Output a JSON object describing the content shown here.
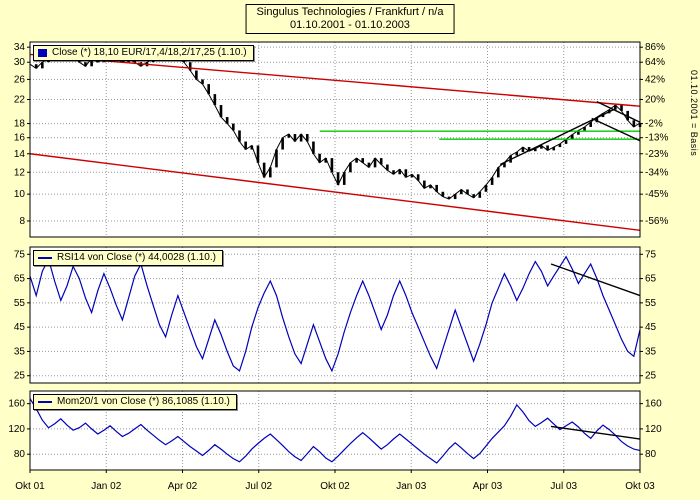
{
  "window": {
    "title_line1": "Singulus Technologies / Frankfurt / n/a",
    "title_line2": "01.10.2001 - 01.10.2003"
  },
  "right_axis_note": "01.10.2001 = Basis",
  "legends": {
    "price": "Close (*) 18,10 EUR/17,4/18,2/17,25 (1.10.)",
    "rsi": "RSI14 von Close (*) 44,0028 (1.10.)",
    "mom": "Mom20/1 von Close (*) 86,1085 (1.10.)"
  },
  "colors": {
    "background": "#ffffc8",
    "panel": "#ffffff",
    "grid": "#999999",
    "frame": "#000000",
    "price": "#000000",
    "indicator": "#0000bb",
    "red": "#cc0000",
    "green": "#00cc00",
    "black": "#000000"
  },
  "x_axis": {
    "labels": [
      "Okt 01",
      "Jan 02",
      "Apr 02",
      "Jul 02",
      "Okt 02",
      "Jan 03",
      "Apr 03",
      "Jul 03",
      "Okt 03"
    ],
    "month_offsets": [
      0,
      3,
      6,
      9,
      12,
      15,
      18,
      21,
      24
    ],
    "grid_months": [
      3,
      6,
      9,
      12,
      15,
      18,
      21
    ],
    "total_months": 24
  },
  "chart_data": [
    {
      "type": "candlestick",
      "name": "Close",
      "unit": "EUR",
      "scale": "log",
      "range": [
        7.0,
        35.5
      ],
      "yticks": [
        {
          "value": 34,
          "pct": "86%"
        },
        {
          "value": 30,
          "pct": "64%"
        },
        {
          "value": 26,
          "pct": "42%"
        },
        {
          "value": 22,
          "pct": "20%"
        },
        {
          "value": 18,
          "pct": "-2%"
        },
        {
          "value": 16,
          "pct": "-13%"
        },
        {
          "value": 14,
          "pct": "-23%"
        },
        {
          "value": 12,
          "pct": "-34%"
        },
        {
          "value": 10,
          "pct": "-45%"
        },
        {
          "value": 8,
          "pct": "-56%"
        }
      ],
      "close": [
        29.5,
        28.5,
        30,
        31,
        32,
        31,
        33,
        32,
        30,
        29,
        31,
        30,
        31,
        32,
        31,
        30,
        31,
        30,
        29,
        30,
        31,
        32,
        31.5,
        32.5,
        31,
        30,
        28,
        26,
        25,
        23,
        21,
        19,
        18,
        17,
        15.5,
        14.5,
        15,
        13,
        11.5,
        12.5,
        14.5,
        16,
        16.5,
        15.5,
        16.5,
        15.5,
        14,
        13,
        13.5,
        12,
        10.8,
        12,
        13,
        13.5,
        13,
        12.5,
        13.5,
        12.8,
        12.2,
        11.8,
        12.3,
        11.5,
        11.8,
        11.2,
        10.5,
        10.8,
        10.2,
        9.8,
        9.6,
        10,
        10.4,
        10,
        9.7,
        10.2,
        10.8,
        11.5,
        12.5,
        13,
        13.8,
        14.2,
        14.8,
        14.3,
        14.6,
        15,
        14.4,
        14.8,
        15.2,
        15.8,
        16.4,
        17,
        17.5,
        18.2,
        19,
        19.6,
        20.2,
        21,
        20,
        18.5,
        17.5,
        18.1
      ],
      "lines": [
        {
          "color": "red",
          "m1": 0,
          "v1": 32,
          "m2": 24,
          "v2": 20.8
        },
        {
          "color": "red",
          "m1": 0,
          "v1": 14,
          "m2": 24,
          "v2": 7.4
        },
        {
          "color": "green",
          "m1": 11.4,
          "v1": 16.9,
          "m2": 24,
          "v2": 16.9
        },
        {
          "color": "green",
          "m1": 16.1,
          "v1": 15.8,
          "m2": 24,
          "v2": 15.8
        },
        {
          "color": "black",
          "m1": 18.5,
          "v1": 12.8,
          "m2": 23,
          "v2": 20.3
        },
        {
          "color": "black",
          "m1": 22.3,
          "v1": 21.6,
          "m2": 24,
          "v2": 18.2
        },
        {
          "color": "black",
          "m1": 22.1,
          "v1": 18.8,
          "m2": 24,
          "v2": 15.6
        }
      ]
    },
    {
      "type": "line",
      "name": "RSI14",
      "range": [
        22,
        78
      ],
      "yticks": [
        75,
        65,
        55,
        45,
        35,
        25
      ],
      "values": [
        66,
        58,
        68,
        73,
        64,
        56,
        62,
        70,
        65,
        57,
        51,
        60,
        67,
        61,
        54,
        48,
        57,
        66,
        71,
        62,
        54,
        46,
        41,
        50,
        58,
        51,
        44,
        37,
        32,
        40,
        48,
        42,
        35,
        29,
        27,
        35,
        45,
        53,
        59,
        64,
        58,
        49,
        41,
        34,
        30,
        38,
        46,
        39,
        32,
        27,
        34,
        43,
        51,
        58,
        64,
        58,
        51,
        44,
        50,
        58,
        64,
        58,
        51,
        45,
        39,
        33,
        28,
        36,
        44,
        52,
        45,
        38,
        31,
        38,
        46,
        55,
        61,
        67,
        62,
        56,
        61,
        67,
        72,
        68,
        62,
        66,
        70,
        74,
        69,
        63,
        67,
        71,
        65,
        58,
        52,
        46,
        40,
        35,
        33,
        44
      ],
      "lines": [
        {
          "color": "black",
          "m1": 20.5,
          "v1": 71,
          "m2": 24,
          "v2": 58
        }
      ]
    },
    {
      "type": "line",
      "name": "Mom20/1",
      "range": [
        55,
        180
      ],
      "yticks": [
        160,
        120,
        80
      ],
      "values": [
        168,
        152,
        134,
        122,
        128,
        136,
        126,
        118,
        122,
        129,
        120,
        112,
        118,
        125,
        116,
        108,
        113,
        120,
        127,
        118,
        110,
        102,
        95,
        101,
        108,
        100,
        92,
        85,
        78,
        86,
        95,
        88,
        80,
        73,
        68,
        77,
        88,
        97,
        105,
        112,
        103,
        94,
        84,
        76,
        70,
        81,
        92,
        84,
        74,
        68,
        77,
        87,
        97,
        106,
        114,
        106,
        97,
        88,
        95,
        104,
        112,
        104,
        96,
        88,
        80,
        73,
        66,
        77,
        89,
        98,
        90,
        81,
        73,
        81,
        93,
        105,
        115,
        125,
        140,
        158,
        147,
        133,
        124,
        130,
        137,
        128,
        119,
        125,
        131,
        123,
        113,
        105,
        117,
        126,
        119,
        110,
        100,
        93,
        88,
        86
      ],
      "lines": [
        {
          "color": "black",
          "m1": 20.5,
          "v1": 124,
          "m2": 24,
          "v2": 104
        }
      ]
    }
  ]
}
